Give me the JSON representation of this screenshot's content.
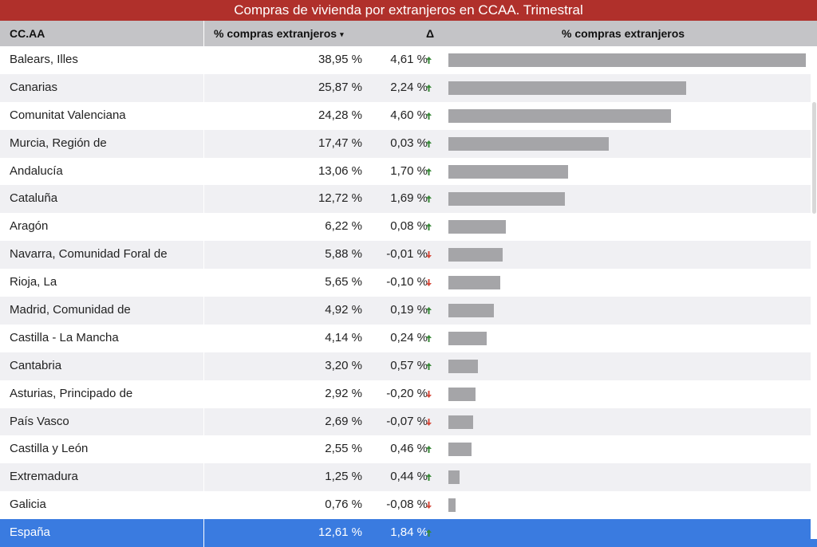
{
  "title": "Compras de vivienda por extranjeros en CCAA. Trimestral",
  "header": {
    "col_region": "CC.AA",
    "col_pct": "% compras extranjeros",
    "sort_icon": "▾",
    "col_delta": "Δ",
    "col_bar": "% compras extranjeros"
  },
  "colors": {
    "title_bg": "#b0302b",
    "bar": "#a5a5a8",
    "up": "#3a8a3a",
    "down": "#d64b3c",
    "total_bg": "#3a7be0"
  },
  "chart_data": {
    "type": "table",
    "columns": [
      "CC.AA",
      "% compras extranjeros",
      "Δ",
      "% compras extranjeros"
    ],
    "max_value": 38.95,
    "rows": [
      {
        "region": "Balears, Illes",
        "value": 38.95,
        "pct": "38,95 %",
        "delta": "4,61 %",
        "dir": "up"
      },
      {
        "region": "Canarias",
        "value": 25.87,
        "pct": "25,87 %",
        "delta": "2,24 %",
        "dir": "up"
      },
      {
        "region": "Comunitat Valenciana",
        "value": 24.28,
        "pct": "24,28 %",
        "delta": "4,60 %",
        "dir": "up"
      },
      {
        "region": "Murcia, Región de",
        "value": 17.47,
        "pct": "17,47 %",
        "delta": "0,03 %",
        "dir": "up"
      },
      {
        "region": "Andalucía",
        "value": 13.06,
        "pct": "13,06 %",
        "delta": "1,70 %",
        "dir": "up"
      },
      {
        "region": "Cataluña",
        "value": 12.72,
        "pct": "12,72 %",
        "delta": "1,69 %",
        "dir": "up"
      },
      {
        "region": "Aragón",
        "value": 6.22,
        "pct": "6,22 %",
        "delta": "0,08 %",
        "dir": "up"
      },
      {
        "region": "Navarra, Comunidad Foral de",
        "value": 5.88,
        "pct": "5,88 %",
        "delta": "-0,01 %",
        "dir": "down"
      },
      {
        "region": "Rioja, La",
        "value": 5.65,
        "pct": "5,65 %",
        "delta": "-0,10 %",
        "dir": "down"
      },
      {
        "region": "Madrid, Comunidad de",
        "value": 4.92,
        "pct": "4,92 %",
        "delta": "0,19 %",
        "dir": "up"
      },
      {
        "region": "Castilla - La Mancha",
        "value": 4.14,
        "pct": "4,14 %",
        "delta": "0,24 %",
        "dir": "up"
      },
      {
        "region": "Cantabria",
        "value": 3.2,
        "pct": "3,20 %",
        "delta": "0,57 %",
        "dir": "up"
      },
      {
        "region": "Asturias, Principado de",
        "value": 2.92,
        "pct": "2,92 %",
        "delta": "-0,20 %",
        "dir": "down"
      },
      {
        "region": "País Vasco",
        "value": 2.69,
        "pct": "2,69 %",
        "delta": "-0,07 %",
        "dir": "down"
      },
      {
        "region": "Castilla y León",
        "value": 2.55,
        "pct": "2,55 %",
        "delta": "0,46 %",
        "dir": "up"
      },
      {
        "region": "Extremadura",
        "value": 1.25,
        "pct": "1,25 %",
        "delta": "0,44 %",
        "dir": "up"
      },
      {
        "region": "Galicia",
        "value": 0.76,
        "pct": "0,76 %",
        "delta": "-0,08 %",
        "dir": "down"
      }
    ],
    "total": {
      "region": "España",
      "value": 12.61,
      "pct": "12,61 %",
      "delta": "1,84 %",
      "dir": "up"
    }
  }
}
